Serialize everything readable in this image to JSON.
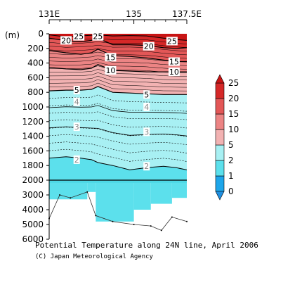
{
  "chart_data": {
    "type": "contour",
    "title": "Potential Temperature along 24N line, April 2006",
    "credit": "(C) Japan Meteorological Agency",
    "x_ticks": [
      {
        "label": "131E",
        "value": 131
      },
      {
        "label": "135",
        "value": 135
      },
      {
        "label": "137.5E",
        "value": 137.5
      }
    ],
    "xlim": [
      131,
      137.5
    ],
    "y_unit_label": "(m)",
    "upper_section": {
      "ylim": [
        0,
        2000
      ],
      "y_ticks": [
        0,
        200,
        400,
        600,
        800,
        1000,
        1200,
        1400,
        1600,
        1800,
        2000
      ],
      "y_tick_labels": [
        "0",
        "200",
        "400",
        "600",
        "800",
        "1000",
        "1200",
        "1400",
        "1600",
        "1800",
        "2000"
      ]
    },
    "lower_section": {
      "ylim": [
        2000,
        6000
      ],
      "y_ticks": [
        3000,
        4000,
        5000,
        6000
      ],
      "y_tick_labels": [
        "3000",
        "4000",
        "5000",
        "6000"
      ]
    },
    "colorbar": {
      "levels": [
        0,
        1,
        2,
        5,
        10,
        15,
        20,
        25
      ],
      "tick_labels": [
        "0",
        "1",
        "2",
        "5",
        "10",
        "15",
        "20",
        "25"
      ],
      "colors": [
        "#1ea6ea",
        "#5ce0ec",
        "#a8f0f3",
        "#f2b2b2",
        "#ec8484",
        "#e35757",
        "#d52828"
      ]
    },
    "contour_labels": [
      {
        "text": "20",
        "x": 131.8,
        "depth": 90,
        "color": "#000000"
      },
      {
        "text": "25",
        "x": 132.4,
        "depth": 35,
        "color": "#000000"
      },
      {
        "text": "25",
        "x": 133.3,
        "depth": 35,
        "color": "#000000"
      },
      {
        "text": "20",
        "x": 135.7,
        "depth": 170,
        "color": "#000000"
      },
      {
        "text": "25",
        "x": 136.8,
        "depth": 100,
        "color": "#000000"
      },
      {
        "text": "15",
        "x": 133.9,
        "depth": 320,
        "color": "#000000"
      },
      {
        "text": "15",
        "x": 136.9,
        "depth": 380,
        "color": "#000000"
      },
      {
        "text": "10",
        "x": 133.9,
        "depth": 500,
        "color": "#000000"
      },
      {
        "text": "10",
        "x": 136.9,
        "depth": 520,
        "color": "#000000"
      },
      {
        "text": "5",
        "x": 132.3,
        "depth": 770,
        "color": "#000000"
      },
      {
        "text": "5",
        "x": 135.6,
        "depth": 830,
        "color": "#000000"
      },
      {
        "text": "4",
        "x": 132.3,
        "depth": 930,
        "color": "#888888"
      },
      {
        "text": "4",
        "x": 135.6,
        "depth": 1000,
        "color": "#888888"
      },
      {
        "text": "3",
        "x": 132.3,
        "depth": 1270,
        "color": "#888888"
      },
      {
        "text": "3",
        "x": 135.6,
        "depth": 1340,
        "color": "#888888"
      },
      {
        "text": "2",
        "x": 132.3,
        "depth": 1720,
        "color": "#888888"
      },
      {
        "text": "2",
        "x": 135.6,
        "depth": 1810,
        "color": "#888888"
      }
    ],
    "bottom_profile": [
      {
        "x": 131.0,
        "depth": 4600
      },
      {
        "x": 131.5,
        "depth": 3000
      },
      {
        "x": 132.0,
        "depth": 3200
      },
      {
        "x": 132.8,
        "depth": 2800
      },
      {
        "x": 133.2,
        "depth": 4400
      },
      {
        "x": 134.0,
        "depth": 4800
      },
      {
        "x": 135.0,
        "depth": 5000
      },
      {
        "x": 135.8,
        "depth": 5100
      },
      {
        "x": 136.3,
        "depth": 5400
      },
      {
        "x": 136.8,
        "depth": 4500
      },
      {
        "x": 137.5,
        "depth": 4800
      }
    ]
  }
}
